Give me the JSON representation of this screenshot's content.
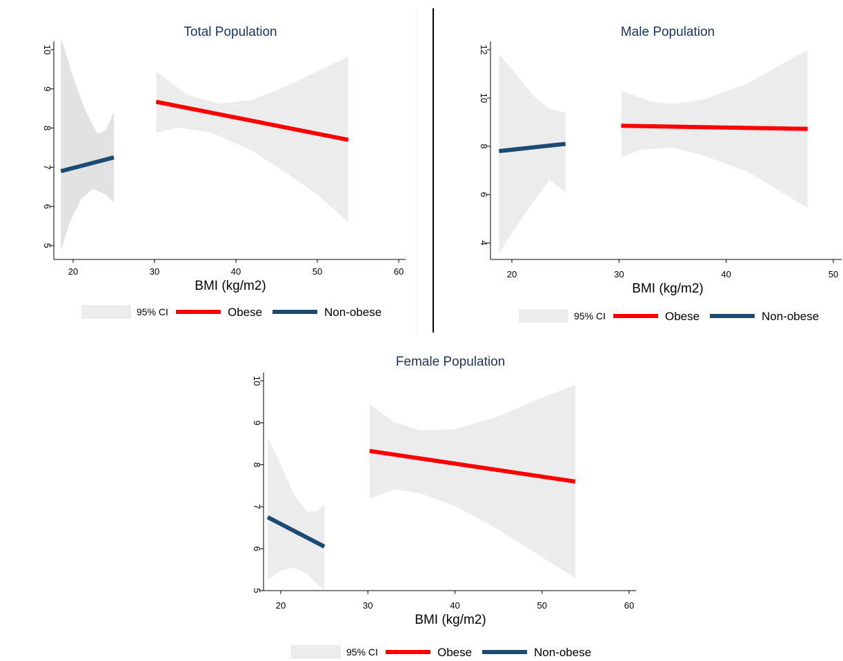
{
  "colors": {
    "background": "#ffffff",
    "title": "#1e3557",
    "obese": "#ff0000",
    "non_obese": "#1b4a73",
    "ci_fill": "#ececec",
    "ci_dark_fill": "#e2e2e2",
    "divider": "#000000"
  },
  "chart_data": [
    {
      "type": "line",
      "title": "Total Population",
      "xlabel": "BMI (kg/m2)",
      "ylabel": "",
      "xlim": [
        18,
        61
      ],
      "ylim": [
        4.8,
        10.2
      ],
      "xticks": [
        "20",
        "30",
        "40",
        "50",
        "60"
      ],
      "yticks": [
        "5",
        "6",
        "7",
        "8",
        "9",
        "10"
      ],
      "legend": [
        "95% CI",
        "Obese",
        "Non-obese"
      ],
      "series": [
        {
          "name": "Obese",
          "x": [
            30.2,
            53.8
          ],
          "y": [
            8.67,
            7.7
          ],
          "ci_upper": [
            {
              "x": 30.2,
              "y": 9.45
            },
            {
              "x": 34,
              "y": 8.85
            },
            {
              "x": 38,
              "y": 8.62
            },
            {
              "x": 42,
              "y": 8.72
            },
            {
              "x": 46,
              "y": 9.05
            },
            {
              "x": 50,
              "y": 9.45
            },
            {
              "x": 53.8,
              "y": 9.82
            }
          ],
          "ci_lower": [
            {
              "x": 30.2,
              "y": 7.88
            },
            {
              "x": 33,
              "y": 8.02
            },
            {
              "x": 37,
              "y": 7.88
            },
            {
              "x": 42,
              "y": 7.42
            },
            {
              "x": 46,
              "y": 6.88
            },
            {
              "x": 50,
              "y": 6.3
            },
            {
              "x": 53.8,
              "y": 5.6
            }
          ]
        },
        {
          "name": "Non-obese",
          "x": [
            18.5,
            25
          ],
          "y": [
            6.9,
            7.25
          ],
          "ci_upper": [
            {
              "x": 18.5,
              "y": 10.3
            },
            {
              "x": 20,
              "y": 9.3
            },
            {
              "x": 21.5,
              "y": 8.45
            },
            {
              "x": 23,
              "y": 7.85
            },
            {
              "x": 24,
              "y": 7.95
            },
            {
              "x": 25,
              "y": 8.4
            }
          ],
          "ci_lower": [
            {
              "x": 18.5,
              "y": 4.85
            },
            {
              "x": 19.5,
              "y": 5.55
            },
            {
              "x": 21,
              "y": 6.2
            },
            {
              "x": 22.5,
              "y": 6.45
            },
            {
              "x": 24,
              "y": 6.3
            },
            {
              "x": 25,
              "y": 6.1
            }
          ]
        }
      ]
    },
    {
      "type": "line",
      "title": "Male Population",
      "xlabel": "BMI (kg/m2)",
      "ylabel": "",
      "xlim": [
        17.5,
        51
      ],
      "ylim": [
        3.4,
        12.6
      ],
      "xticks": [
        "20",
        "30",
        "40",
        "50"
      ],
      "yticks": [
        "4",
        "6",
        "8",
        "10",
        "12"
      ],
      "legend": [
        "95% CI",
        "Obese",
        "Non-obese"
      ],
      "series": [
        {
          "name": "Obese",
          "x": [
            30.2,
            47.6
          ],
          "y": [
            8.85,
            8.72
          ],
          "ci_upper": [
            {
              "x": 30.2,
              "y": 10.3
            },
            {
              "x": 33,
              "y": 9.85
            },
            {
              "x": 35,
              "y": 9.75
            },
            {
              "x": 38,
              "y": 9.95
            },
            {
              "x": 42,
              "y": 10.6
            },
            {
              "x": 47.6,
              "y": 12.0
            }
          ],
          "ci_lower": [
            {
              "x": 30.2,
              "y": 7.55
            },
            {
              "x": 32,
              "y": 7.85
            },
            {
              "x": 35,
              "y": 7.95
            },
            {
              "x": 38,
              "y": 7.6
            },
            {
              "x": 42,
              "y": 6.95
            },
            {
              "x": 47.6,
              "y": 5.45
            }
          ]
        },
        {
          "name": "Non-obese",
          "x": [
            18.8,
            25
          ],
          "y": [
            7.8,
            8.1
          ],
          "ci_upper": [
            {
              "x": 18.8,
              "y": 11.8
            },
            {
              "x": 20,
              "y": 11.2
            },
            {
              "x": 22,
              "y": 10.1
            },
            {
              "x": 23.5,
              "y": 9.55
            },
            {
              "x": 25,
              "y": 9.4
            }
          ],
          "ci_lower": [
            {
              "x": 18.8,
              "y": 3.55
            },
            {
              "x": 20,
              "y": 4.4
            },
            {
              "x": 22,
              "y": 5.7
            },
            {
              "x": 23.5,
              "y": 6.6
            },
            {
              "x": 25,
              "y": 6.1
            }
          ]
        }
      ]
    },
    {
      "type": "line",
      "title": "Female Population",
      "xlabel": "BMI (kg/m2)",
      "ylabel": "",
      "xlim": [
        18,
        61
      ],
      "ylim": [
        4.8,
        10.2
      ],
      "xticks": [
        "20",
        "30",
        "40",
        "50",
        "60"
      ],
      "yticks": [
        "5",
        "6",
        "7",
        "8",
        "9",
        "10"
      ],
      "legend": [
        "95% CI",
        "Obese",
        "Non-obese"
      ],
      "series": [
        {
          "name": "Obese",
          "x": [
            30.2,
            53.8
          ],
          "y": [
            8.33,
            7.6
          ],
          "ci_upper": [
            {
              "x": 30.2,
              "y": 9.45
            },
            {
              "x": 33,
              "y": 9.02
            },
            {
              "x": 36,
              "y": 8.82
            },
            {
              "x": 40,
              "y": 8.85
            },
            {
              "x": 45,
              "y": 9.15
            },
            {
              "x": 50,
              "y": 9.6
            },
            {
              "x": 53.8,
              "y": 9.9
            }
          ],
          "ci_lower": [
            {
              "x": 30.2,
              "y": 7.18
            },
            {
              "x": 33,
              "y": 7.42
            },
            {
              "x": 36,
              "y": 7.32
            },
            {
              "x": 40,
              "y": 7.02
            },
            {
              "x": 45,
              "y": 6.45
            },
            {
              "x": 50,
              "y": 5.8
            },
            {
              "x": 53.8,
              "y": 5.3
            }
          ]
        },
        {
          "name": "Non-obese",
          "x": [
            18.5,
            25
          ],
          "y": [
            6.75,
            6.05
          ],
          "ci_upper": [
            {
              "x": 18.5,
              "y": 8.65
            },
            {
              "x": 20,
              "y": 8.0
            },
            {
              "x": 21.5,
              "y": 7.3
            },
            {
              "x": 23,
              "y": 6.88
            },
            {
              "x": 24.2,
              "y": 6.9
            },
            {
              "x": 25,
              "y": 7.05
            }
          ],
          "ci_lower": [
            {
              "x": 18.5,
              "y": 5.25
            },
            {
              "x": 20,
              "y": 5.48
            },
            {
              "x": 21.5,
              "y": 5.55
            },
            {
              "x": 23,
              "y": 5.4
            },
            {
              "x": 24.2,
              "y": 5.15
            },
            {
              "x": 25,
              "y": 5.02
            }
          ]
        }
      ]
    }
  ]
}
